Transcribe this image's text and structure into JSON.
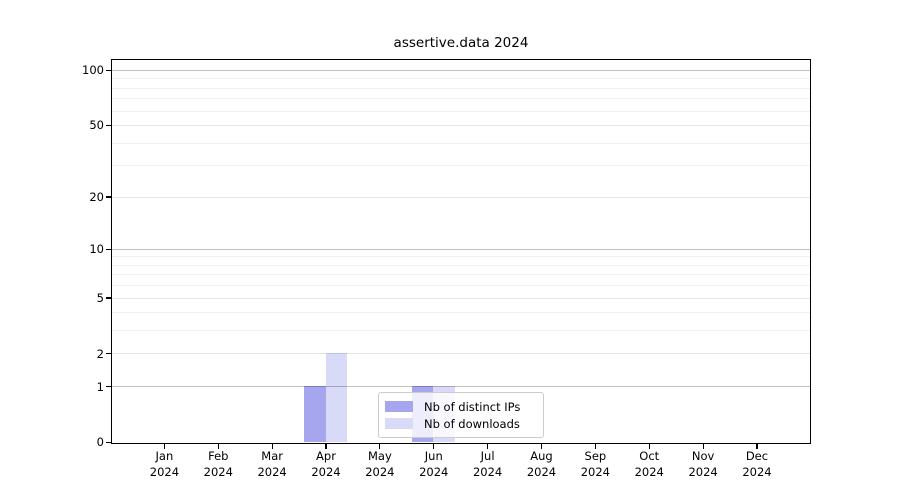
{
  "chart_data": {
    "type": "bar",
    "title": "assertive.data 2024",
    "y_scale": "log1p",
    "ylim": [
      0,
      100
    ],
    "y_ticks": [
      0,
      1,
      2,
      5,
      10,
      20,
      50,
      100
    ],
    "y_decade_gridlines": [
      1,
      10,
      100
    ],
    "y_minor_gridlines": [
      3,
      4,
      6,
      7,
      8,
      9,
      30,
      40,
      60,
      70,
      80,
      90
    ],
    "categories": [
      "Jan",
      "Feb",
      "Mar",
      "Apr",
      "May",
      "Jun",
      "Jul",
      "Aug",
      "Sep",
      "Oct",
      "Nov",
      "Dec"
    ],
    "x_year": "2024",
    "series": [
      {
        "name": "Nb of distinct IPs",
        "color": "#a6a6ef",
        "values": [
          0,
          0,
          0,
          1,
          0,
          1,
          0,
          0,
          0,
          0,
          0,
          0
        ]
      },
      {
        "name": "Nb of downloads",
        "color": "#d9d9f8",
        "values": [
          0,
          0,
          0,
          2,
          0,
          1,
          0,
          0,
          0,
          0,
          0,
          0
        ]
      }
    ],
    "legend_position": "lower center",
    "grid": true,
    "background_color": "#ffffff",
    "frame_color": "#000000"
  }
}
